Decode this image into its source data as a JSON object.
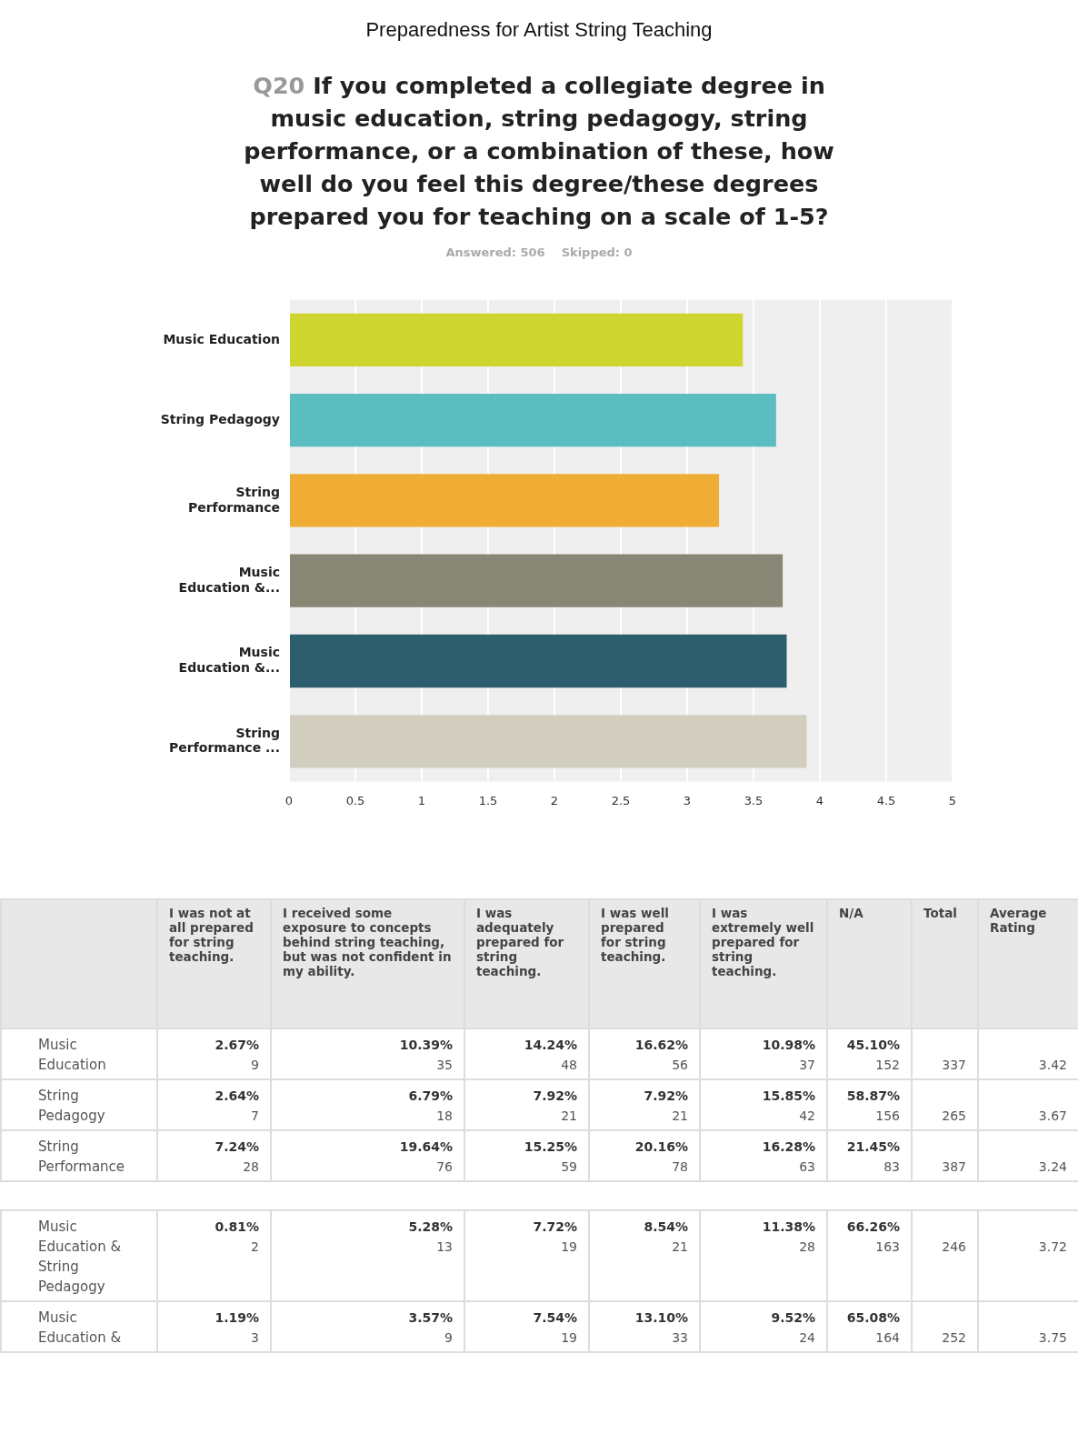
{
  "chart_data": [
    {
      "type": "bar",
      "orientation": "horizontal",
      "title": "Preparedness for Artist String Teaching",
      "subtitle": "Q20 If you completed a collegiate degree in music education, string pedagogy, string performance, or a combination of these, how well do you feel this degree/these degrees prepared you for teaching on a scale of 1-5?",
      "annotations": [
        "Answered: 506",
        "Skipped: 0"
      ],
      "categories": [
        "Music Education",
        "String Pedagogy",
        "String Performance",
        "Music Education &...",
        "Music Education &...",
        "String Performance ..."
      ],
      "values": [
        3.42,
        3.67,
        3.24,
        3.72,
        3.75,
        3.9
      ],
      "colors": [
        "#cfd52f",
        "#5bbdbf",
        "#f0ad35",
        "#888776",
        "#2d5e6d",
        "#d1cec0"
      ],
      "xlim": [
        0,
        5
      ],
      "xticks": [
        0,
        0.5,
        1,
        1.5,
        2,
        2.5,
        3,
        3.5,
        4,
        4.5,
        5
      ],
      "grid": "x",
      "legend": false
    },
    {
      "type": "other",
      "categories": [
        null,
        "I was not at all prepared for string teaching.",
        "I received some exposure to concepts behind string teaching, but was not confident in my ability.",
        "I was adequately prepared for string teaching.",
        "I was well prepared for string teaching.",
        "I was extremely well prepared for string teaching.",
        "N/A",
        "Total",
        "Average Rating"
      ],
      "y_categories": [
        "Music Education",
        "String Pedagogy",
        "String Performance"
      ],
      "cell_labels": [
        [
          "2.67%\n9",
          "10.39%\n35",
          "14.24%\n48",
          "16.62%\n56",
          "10.98%\n37",
          "45.10%\n152",
          "337",
          "3.42"
        ],
        [
          "2.64%\n7",
          "6.79%\n18",
          "7.92%\n21",
          "7.92%\n21",
          "15.85%\n42",
          "58.87%\n156",
          "265",
          "3.67"
        ],
        [
          "7.24%\n28",
          "19.64%\n76",
          "15.25%\n59",
          "20.16%\n78",
          "16.28%\n63",
          "21.45%\n83",
          "387",
          "3.24"
        ]
      ]
    },
    {
      "type": "other",
      "y_categories": [
        "Music Education & String Pedagogy",
        "Music Education &"
      ],
      "cell_labels": [
        [
          "0.81%\n2",
          "5.28%\n13",
          "7.72%\n19",
          "8.54%\n21",
          "11.38%\n28",
          "66.26%\n163",
          "246",
          "3.72"
        ],
        [
          "1.19%\n3",
          "3.57%\n9",
          "7.54%\n19",
          "13.10%\n33",
          "9.52%\n24",
          "65.08%\n164",
          "252",
          "3.75"
        ]
      ]
    }
  ]
}
